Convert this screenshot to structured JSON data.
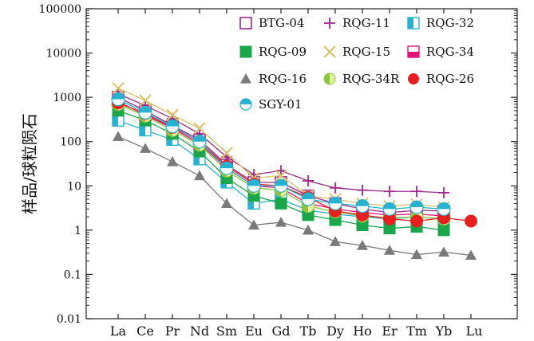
{
  "chart_data": {
    "type": "line",
    "title": "",
    "xlabel": "",
    "ylabel": "样品/球粒陨石",
    "y_scale": "log",
    "ylim": [
      0.01,
      100000
    ],
    "y_ticks": [
      "0.01",
      "0.1",
      "1",
      "10",
      "100",
      "1000",
      "10000",
      "100000"
    ],
    "categories": [
      "La",
      "Ce",
      "Pr",
      "Nd",
      "Sm",
      "Eu",
      "Gd",
      "Tb",
      "Dy",
      "Ho",
      "Er",
      "Tm",
      "Yb",
      "Lu"
    ],
    "grid": false,
    "legend_position": "top-right",
    "series": [
      {
        "name": "BTG-04",
        "marker": "open-square",
        "color": "#9b2a8c",
        "values": [
          1000,
          500,
          230,
          110,
          30,
          12,
          12,
          6,
          4.0,
          3.0,
          2.5,
          2.8,
          2.7,
          null
        ]
      },
      {
        "name": "RQG-11",
        "marker": "plus",
        "color": "#9b2a8c",
        "values": [
          1200,
          650,
          330,
          150,
          45,
          18,
          22,
          13,
          9,
          8,
          7.5,
          7.5,
          7,
          null
        ]
      },
      {
        "name": "RQG-32",
        "marker": "half-cyan-square",
        "color": "#29b2cf",
        "values": [
          300,
          180,
          110,
          40,
          12,
          4,
          5,
          2.8,
          2.3,
          2.0,
          1.8,
          2.0,
          1.8,
          null
        ]
      },
      {
        "name": "RQG-09",
        "marker": "filled-square",
        "color": "#1aa64a",
        "values": [
          500,
          300,
          150,
          60,
          15,
          6,
          4,
          2.2,
          1.7,
          1.3,
          1.1,
          1.2,
          1.0,
          null
        ]
      },
      {
        "name": "RQG-15",
        "marker": "x",
        "color": "#d9c26a",
        "values": [
          1600,
          850,
          400,
          200,
          55,
          15,
          17,
          6,
          5,
          4,
          3.5,
          3.8,
          3.3,
          null
        ]
      },
      {
        "name": "RQG-34",
        "marker": "half-magenta-square",
        "color": "#e2147a",
        "values": [
          800,
          400,
          200,
          90,
          25,
          10,
          9,
          4,
          3,
          2.5,
          2.2,
          2.3,
          2.1,
          null
        ]
      },
      {
        "name": "RQG-16",
        "marker": "triangle",
        "color": "#7a7a7a",
        "values": [
          130,
          70,
          35,
          17,
          4,
          1.3,
          1.5,
          1.0,
          0.55,
          0.45,
          0.35,
          0.28,
          0.32,
          0.27
        ]
      },
      {
        "name": "RQG-34R",
        "marker": "half-green-circle",
        "color": "#8cc63f",
        "values": [
          700,
          380,
          180,
          85,
          22,
          9,
          8,
          3.5,
          2.6,
          2.1,
          1.9,
          2.0,
          1.8,
          null
        ]
      },
      {
        "name": "RQG-26",
        "marker": "filled-circle",
        "color": "#e62020",
        "values": [
          750,
          430,
          210,
          100,
          28,
          11,
          10,
          5.5,
          2.7,
          2.2,
          1.8,
          1.6,
          1.9,
          1.6
        ]
      },
      {
        "name": "SGY-01",
        "marker": "half-cyan-circle",
        "color": "#29b2cf",
        "values": [
          900,
          450,
          220,
          100,
          25,
          10,
          10,
          5,
          4,
          3.5,
          3.0,
          3.3,
          3.0,
          null
        ]
      }
    ]
  }
}
